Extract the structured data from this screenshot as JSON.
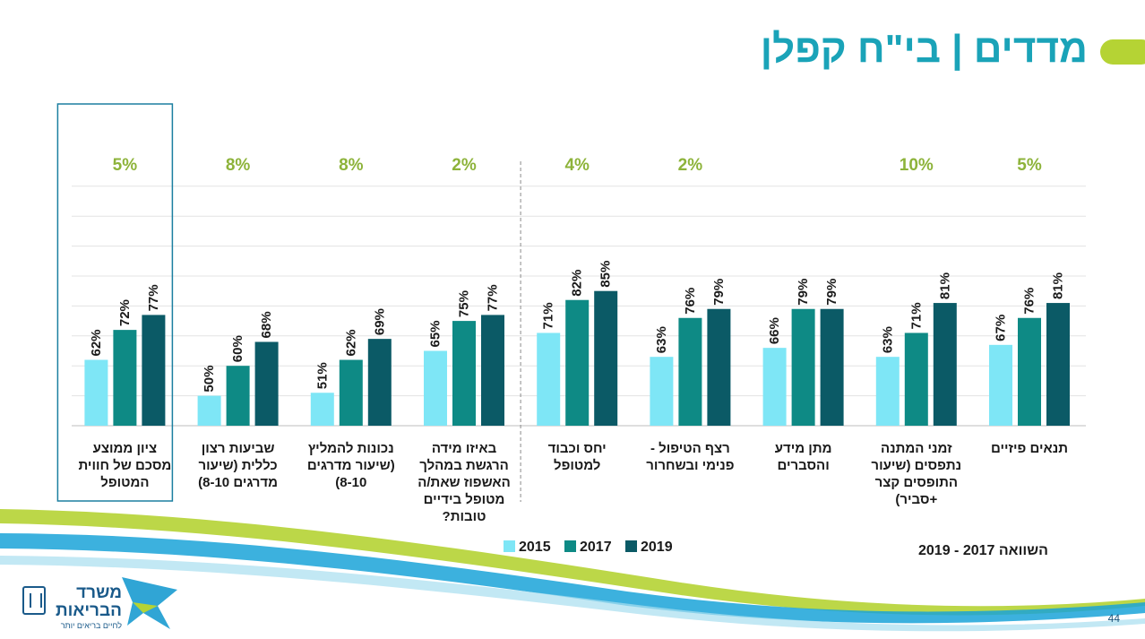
{
  "header": {
    "title": "מדדים | בי\"ח קפלן"
  },
  "chart_data": {
    "type": "bar",
    "title": "מדדים | בי\"ח קפלן",
    "series": [
      {
        "name": "2015",
        "color": "#7ee6f6",
        "values": [
          67,
          63,
          66,
          63,
          71,
          65,
          51,
          50,
          62
        ]
      },
      {
        "name": "2017",
        "color": "#0e8a85",
        "values": [
          76,
          71,
          79,
          76,
          82,
          75,
          62,
          60,
          72
        ]
      },
      {
        "name": "2019",
        "color": "#0b5a66",
        "values": [
          81,
          81,
          79,
          79,
          85,
          77,
          69,
          68,
          77
        ]
      }
    ],
    "value_labels": [
      [
        "67%",
        "63%",
        "66%",
        "63%",
        "71%",
        "65%",
        "51%",
        "50%",
        "62%"
      ],
      [
        "76%",
        "71%",
        "79%",
        "76%",
        "82%",
        "75%",
        "62%",
        "60%",
        "72%"
      ],
      [
        "81%",
        "81%",
        "79%",
        "79%",
        "85%",
        "77%",
        "69%",
        "68%",
        "77%"
      ]
    ],
    "categories": [
      [
        "תנאים פיזיים"
      ],
      [
        "זמני המתנה",
        "נתפסים  (שיעור",
        "התופסים קצר",
        "+סביר)"
      ],
      [
        "מתן מידע",
        "והסברים"
      ],
      [
        "רצף הטיפול  -",
        "פנימי ובשחרור"
      ],
      [
        "יחס וכבוד",
        "למטופל"
      ],
      [
        "באיזו מידה",
        "הרגשת במהלך",
        "האשפוז שאת/ה",
        "מטופל בידיים",
        "טובות?"
      ],
      [
        "נכונות להמליץ",
        "(שיעור מדרגים",
        "8-10)"
      ],
      [
        "שביעות רצון",
        "כללית (שיעור",
        "מדרגים 8-10)"
      ],
      [
        "ציון ממוצע",
        "מסכם של חווית",
        "המטופל"
      ]
    ],
    "change_labels": [
      "5%",
      "10%",
      "",
      "2%",
      "4%",
      "2%",
      "8%",
      "8%",
      "5%"
    ],
    "comparison_label": "השוואה  2017 - 2019",
    "legend_position": "bottom",
    "ylim": [
      0,
      100
    ],
    "grid": true,
    "highlighted_category": "ציון ממוצע מסכם של חווית המטופל",
    "colors": {
      "accent": "#1aa3b8",
      "change": "#8db33a",
      "lime": "#b5d334",
      "navy": "#17527a"
    }
  },
  "legend": {
    "label": "2015  2017  2019"
  },
  "footer": {
    "logo_line1": "משרד",
    "logo_line2": "הבריאות",
    "logo_tagline": "לחיים בריאים יותר",
    "page_number": "44"
  }
}
